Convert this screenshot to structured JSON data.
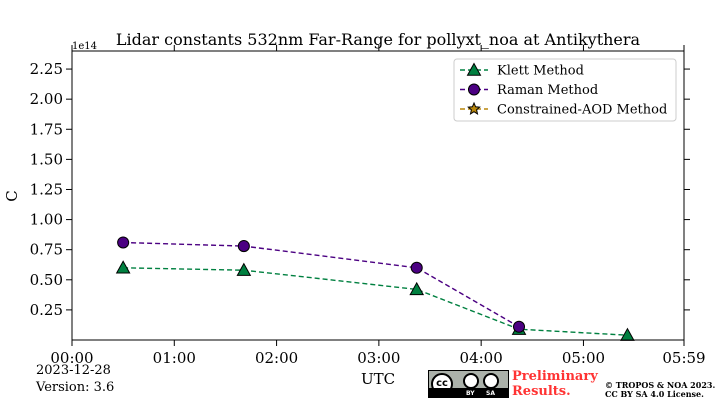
{
  "chart_data": {
    "type": "line",
    "title": "Lidar constants 532nm Far-Range for pollyxt_noa at Antikythera",
    "xlabel": "UTC",
    "ylabel": "C",
    "y_offset_label": "1e14",
    "x_ticks": [
      "00:00",
      "01:00",
      "02:00",
      "03:00",
      "04:00",
      "05:00",
      "05:59"
    ],
    "x_tick_hours": [
      0,
      1,
      2,
      3,
      4,
      5,
      5.983
    ],
    "xlim": [
      0,
      5.983
    ],
    "y_ticks": [
      "0.25",
      "0.50",
      "0.75",
      "1.00",
      "1.25",
      "1.50",
      "1.75",
      "2.00",
      "2.25"
    ],
    "y_tick_values": [
      0.25,
      0.5,
      0.75,
      1.0,
      1.25,
      1.5,
      1.75,
      2.0,
      2.25
    ],
    "ylim": [
      0.0,
      2.4
    ],
    "y_unit_multiplier": 100000000000000.0,
    "grid": false,
    "legend_position": "top-right",
    "series": [
      {
        "name": "Klett Method",
        "marker": "triangle",
        "color": "#008040",
        "x": [
          0.5,
          1.68,
          3.37,
          4.37,
          5.43
        ],
        "y": [
          0.6,
          0.58,
          0.42,
          0.09,
          0.04
        ]
      },
      {
        "name": "Raman Method",
        "marker": "circle",
        "color": "#4b0082",
        "x": [
          0.5,
          1.68,
          3.37,
          4.37
        ],
        "y": [
          0.81,
          0.78,
          0.6,
          0.11
        ]
      },
      {
        "name": "Constrained-AOD Method",
        "marker": "star",
        "color": "#b8860b",
        "x": [],
        "y": []
      }
    ]
  },
  "footer": {
    "date": "2023-12-28",
    "version": "Version: 3.6",
    "preliminary_line1": "Preliminary",
    "preliminary_line2": "Results.",
    "copyright_line1": "© TROPOS & NOA 2023.",
    "copyright_line2": "CC BY SA 4.0 License.",
    "license_badge": {
      "cc": "cc",
      "by": "BY",
      "sa": "SA"
    }
  }
}
